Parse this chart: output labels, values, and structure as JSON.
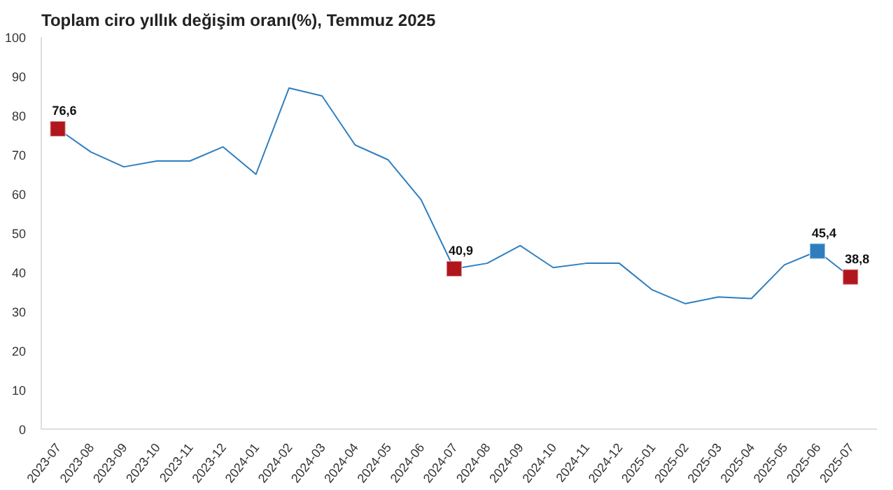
{
  "chart_data": {
    "type": "line",
    "title": "Toplam ciro yıllık değişim oranı(%), Temmuz 2025",
    "categories": [
      "2023-07",
      "2023-08",
      "2023-09",
      "2023-10",
      "2023-11",
      "2023-12",
      "2024-01",
      "2024-02",
      "2024-03",
      "2024-04",
      "2024-05",
      "2024-06",
      "2024-07",
      "2024-08",
      "2024-09",
      "2024-10",
      "2024-11",
      "2024-12",
      "2025-01",
      "2025-02",
      "2025-03",
      "2025-04",
      "2025-05",
      "2025-06",
      "2025-07"
    ],
    "series": [
      {
        "color": "#2e7ebf",
        "values": [
          76.6,
          70.7,
          66.9,
          68.4,
          68.4,
          72.0,
          65.0,
          87.0,
          85.0,
          72.5,
          68.7,
          58.5,
          40.9,
          42.3,
          46.8,
          41.2,
          42.3,
          42.3,
          35.5,
          32.0,
          33.7,
          33.3,
          41.9,
          45.4,
          38.8
        ]
      },
      {
        "type": "scatter",
        "marker": "square",
        "values": [
          76.6,
          null,
          null,
          null,
          null,
          null,
          null,
          null,
          null,
          null,
          null,
          null,
          40.9,
          null,
          null,
          null,
          null,
          null,
          null,
          null,
          null,
          null,
          null,
          45.4,
          38.8
        ],
        "colors": [
          "#b0161c",
          null,
          null,
          null,
          null,
          null,
          null,
          null,
          null,
          null,
          null,
          null,
          "#b0161c",
          null,
          null,
          null,
          null,
          null,
          null,
          null,
          null,
          null,
          null,
          "#2e7ebf",
          "#b0161c"
        ],
        "value_labels": [
          "76,6",
          null,
          null,
          null,
          null,
          null,
          null,
          null,
          null,
          null,
          null,
          null,
          "40,9",
          null,
          null,
          null,
          null,
          null,
          null,
          null,
          null,
          null,
          null,
          "45,4",
          "38,8"
        ]
      }
    ],
    "ylim": [
      0,
      100
    ],
    "yticks": [
      0,
      10,
      20,
      30,
      40,
      50,
      60,
      70,
      80,
      90,
      100
    ],
    "grid": false
  }
}
